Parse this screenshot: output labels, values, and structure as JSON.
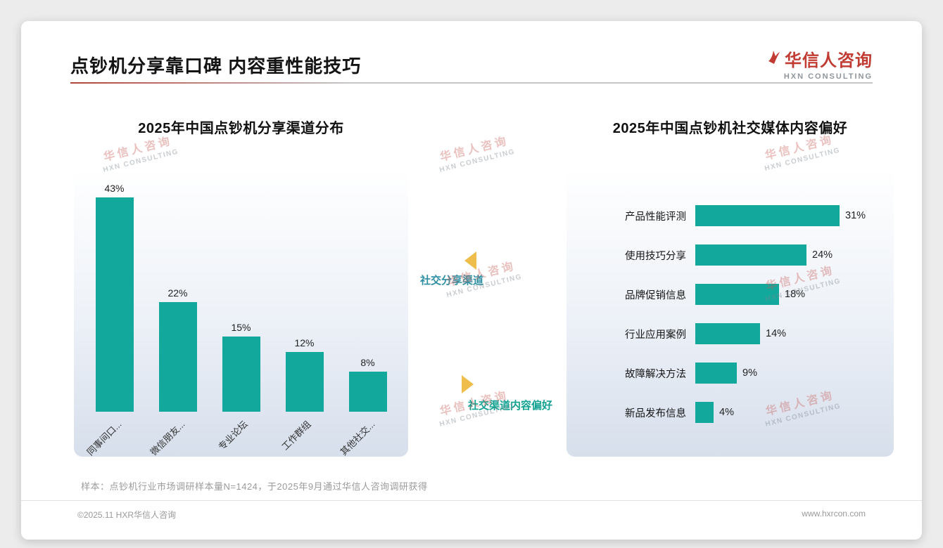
{
  "page": {
    "title": "点钞机分享靠口碑 内容重性能技巧",
    "logo": {
      "cn": "华信人咨询",
      "en": "HXN CONSULTING"
    },
    "watermark": {
      "cn": "华信人咨询",
      "en": "HXN CONSULTING"
    },
    "annotations": {
      "share_channel": "社交分享渠道",
      "content_preference": "社交渠道内容偏好"
    },
    "footer": {
      "sample_note": "样本：点钞机行业市场调研样本量N=1424，于2025年9月通过华信人咨询调研获得",
      "copyright": "©2025.11 HXR华信人咨询",
      "website": "www.hxrcon.com"
    },
    "colors": {
      "bar": "#13a89c",
      "brand_red": "#c23b33",
      "gold": "#eebd4b",
      "annotation_left": "#2e8fa3",
      "annotation_right": "#12a292"
    }
  },
  "chart_data": [
    {
      "type": "bar",
      "orientation": "vertical",
      "title": "2025年中国点钞机分享渠道分布",
      "categories": [
        "同事间口...",
        "微信朋友...",
        "专业论坛",
        "工作群组",
        "其他社交..."
      ],
      "values": [
        43,
        22,
        15,
        12,
        8
      ],
      "unit": "%",
      "bar_color": "#13a89c",
      "ylim": [
        0,
        45
      ],
      "grid": false,
      "legend": "none"
    },
    {
      "type": "bar",
      "orientation": "horizontal",
      "title": "2025年中国点钞机社交媒体内容偏好",
      "categories": [
        "产品性能评测",
        "使用技巧分享",
        "品牌促销信息",
        "行业应用案例",
        "故障解决方法",
        "新品发布信息"
      ],
      "values": [
        31,
        24,
        18,
        14,
        9,
        4
      ],
      "unit": "%",
      "bar_color": "#13a89c",
      "xlim": [
        0,
        35
      ],
      "grid": false,
      "legend": "none"
    }
  ]
}
